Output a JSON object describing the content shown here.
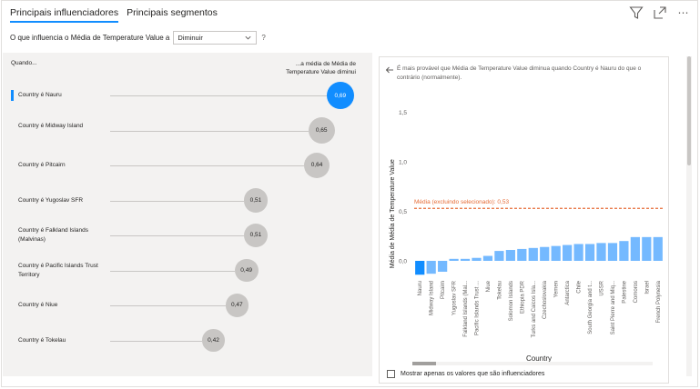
{
  "tabs": [
    {
      "label": "Principais influenciadores",
      "active": true
    },
    {
      "label": "Principais segmentos",
      "active": false
    }
  ],
  "toolbar": {
    "filter_icon": "filter-icon",
    "focus_icon": "focus-mode-icon",
    "more_label": "⋯"
  },
  "question": {
    "prefix": "O que influencia o Média de Temperature Value a",
    "selected": "Diminuir",
    "help": "?"
  },
  "left": {
    "col_when": "Quando...",
    "col_right": "...a média de Média de Temperature Value diminui",
    "influencers": [
      {
        "label": "Country é Nauru",
        "value": "0,69",
        "num": 0.69,
        "selected": true
      },
      {
        "label": "Country é Midway Island",
        "value": "0,65",
        "num": 0.65,
        "selected": false
      },
      {
        "label": "Country é Pitcairn",
        "value": "0,64",
        "num": 0.64,
        "selected": false
      },
      {
        "label": "Country é Yugoslav SFR",
        "value": "0,51",
        "num": 0.51,
        "selected": false
      },
      {
        "label": "Country é Falkland Islands (Malvinas)",
        "value": "0,51",
        "num": 0.51,
        "selected": false
      },
      {
        "label": "Country é Pacific Islands Trust Territory",
        "value": "0,49",
        "num": 0.49,
        "selected": false
      },
      {
        "label": "Country é Niue",
        "value": "0,47",
        "num": 0.47,
        "selected": false
      },
      {
        "label": "Country é Tokelau",
        "value": "0,42",
        "num": 0.42,
        "selected": false
      }
    ]
  },
  "right": {
    "description": "É mais provável que Média de Temperature Value diminua quando Country é Nauru do que o contrário (normalmente).",
    "checkbox_label": "Mostrar apenas os valores que são influenciadores"
  },
  "chart_data": {
    "type": "bar",
    "title": "",
    "xlabel": "Country",
    "ylabel": "Média de Média de Temperature Value",
    "ylim": [
      -0.15,
      1.5
    ],
    "yticks": [
      {
        "value": 1.5,
        "label": "1,5"
      },
      {
        "value": 1.0,
        "label": "1,0"
      },
      {
        "value": 0.5,
        "label": "0,5"
      },
      {
        "value": 0.0,
        "label": "0,0"
      }
    ],
    "reference_line": {
      "value": 0.53,
      "label": "Média (excluindo selecionado): 0,53"
    },
    "selected_color": "#118dff",
    "bar_color": "#74b9ff",
    "ref_color": "#e66c37",
    "categories": [
      "Nauru",
      "Midway Island",
      "Pitcairn",
      "Yugoslav SFR",
      "Falkland Islands (Mal...",
      "Pacific Islands Trust ...",
      "Niue",
      "Tokelau",
      "Solomon Islands",
      "Ethiopia PDR",
      "Turks and Caicos Isla...",
      "Czechoslovakia",
      "Yemen",
      "Antarctica",
      "Chile",
      "South Georgia and t...",
      "USSR",
      "Saint Pierre and Miq...",
      "Palestine",
      "Comoros",
      "Israel",
      "French Polynesia"
    ],
    "values": [
      -0.14,
      -0.13,
      -0.11,
      0.02,
      0.02,
      0.03,
      0.05,
      0.1,
      0.11,
      0.12,
      0.13,
      0.14,
      0.15,
      0.16,
      0.17,
      0.17,
      0.18,
      0.18,
      0.2,
      0.24,
      0.24,
      0.24
    ]
  }
}
